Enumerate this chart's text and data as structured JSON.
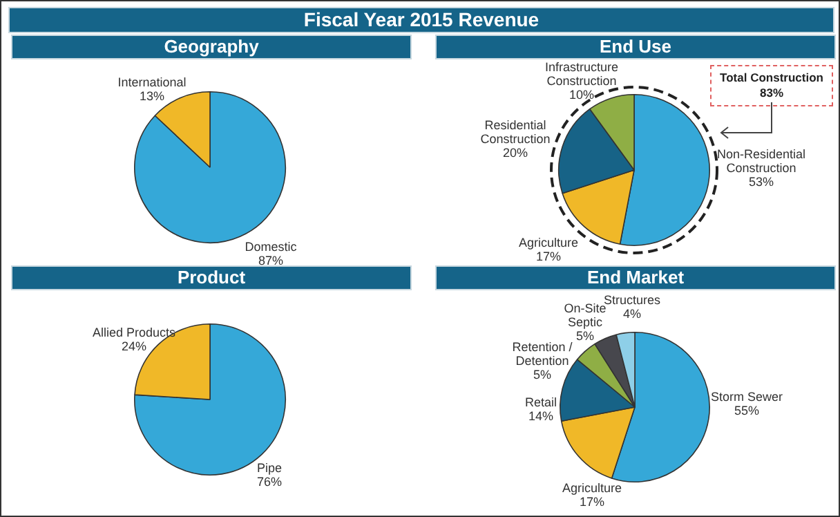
{
  "chart_data": [
    {
      "type": "other",
      "title": "Fiscal Year 2015 Revenue"
    },
    {
      "type": "pie",
      "title": "Geography",
      "categories": [
        "Domestic",
        "International"
      ],
      "values": [
        87,
        13
      ],
      "value_labels": [
        "87%",
        "13%"
      ],
      "colors": [
        "#35a8d8",
        "#f0b828"
      ]
    },
    {
      "type": "pie",
      "title": "End Use",
      "categories": [
        "Non-Residential Construction",
        "Agriculture",
        "Residential Construction",
        "Infrastructure Construction"
      ],
      "values": [
        53,
        17,
        20,
        10
      ],
      "value_labels": [
        "53%",
        "17%",
        "20%",
        "10%"
      ],
      "colors": [
        "#35a8d8",
        "#f0b828",
        "#176387",
        "#8fae45"
      ],
      "annotations": [
        "Total Construction 83%"
      ]
    },
    {
      "type": "pie",
      "title": "Product",
      "categories": [
        "Pipe",
        "Allied Products"
      ],
      "values": [
        76,
        24
      ],
      "value_labels": [
        "76%",
        "24%"
      ],
      "colors": [
        "#35a8d8",
        "#f0b828"
      ]
    },
    {
      "type": "pie",
      "title": "End Market",
      "categories": [
        "Storm Sewer",
        "Agriculture",
        "Retail",
        "Retention / Detention",
        "On-Site Septic",
        "Structures"
      ],
      "values": [
        55,
        17,
        14,
        5,
        5,
        4
      ],
      "value_labels": [
        "55%",
        "17%",
        "14%",
        "5%",
        "5%",
        "4%"
      ],
      "colors": [
        "#35a8d8",
        "#f0b828",
        "#176387",
        "#8fae45",
        "#47474d",
        "#8ecfe8"
      ]
    }
  ]
}
